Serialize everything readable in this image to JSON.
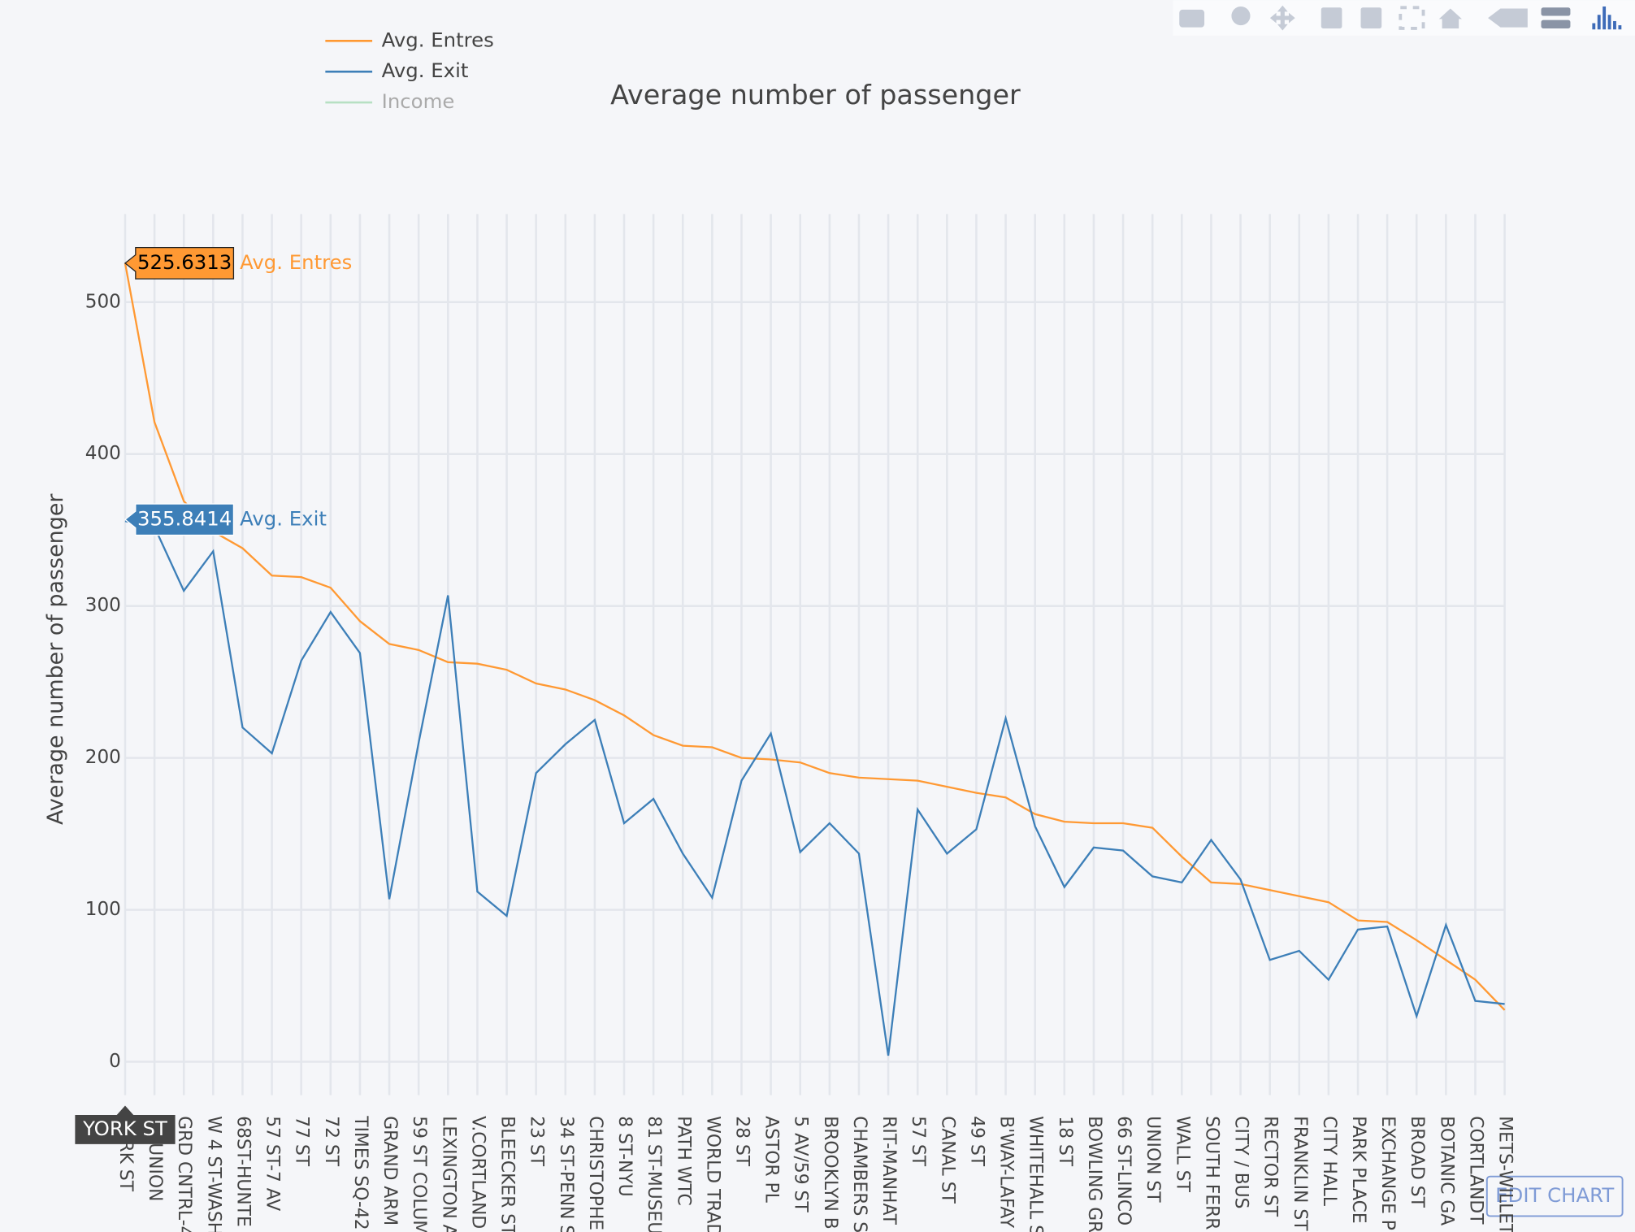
{
  "chart_data": {
    "type": "line",
    "title": "Average number of passenger",
    "y_label": "Average number of passenger",
    "categories": [
      "YORK ST",
      "ST-UNION",
      "GRD CNTRL-4",
      "W 4 ST-WASH",
      "68ST-HUNTE",
      "57 ST-7 AV",
      "77 ST",
      "72 ST",
      "TIMES SQ-42",
      "GRAND ARM",
      "59 ST COLUM",
      "LEXINGTON A",
      "V.CORTLAND",
      "BLEECKER ST",
      "23 ST",
      "34 ST-PENN S",
      "CHRISTOPHE",
      "8 ST-NYU",
      "81 ST-MUSEU",
      "PATH WTC",
      "WORLD TRAD",
      "28 ST",
      "ASTOR PL",
      "5 AV/59 ST",
      "BROOKLYN B",
      "CHAMBERS S",
      "RIT-MANHAT",
      "57 ST",
      "CANAL ST",
      "49 ST",
      "B'WAY-LAFAY",
      "WHITEHALL S",
      "18 ST",
      "BOWLING GR",
      "66 ST-LINCO",
      "UNION ST",
      "WALL ST",
      "SOUTH FERR",
      "CITY / BUS",
      "RECTOR ST",
      "FRANKLIN ST",
      "CITY HALL",
      "PARK PLACE",
      "EXCHANGE P",
      "BROAD ST",
      "BOTANIC GA",
      "CORTLANDT",
      "METS-WILLET"
    ],
    "series": [
      {
        "name": "Avg. Entres",
        "color": "#ff9933",
        "values": [
          525.6313,
          421,
          369,
          349,
          338,
          320,
          319,
          312,
          290,
          275,
          271,
          263,
          262,
          258,
          249,
          245,
          238,
          228,
          215,
          208,
          207,
          200,
          199,
          197,
          190,
          187,
          186,
          185,
          181,
          177,
          174,
          163,
          158,
          157,
          157,
          154,
          135,
          118,
          117,
          113,
          109,
          105,
          93,
          92,
          80,
          67,
          54,
          34
        ]
      },
      {
        "name": "Avg. Exit",
        "color": "#3d7fb8",
        "values": [
          355.8414,
          352,
          310,
          336,
          220,
          203,
          264,
          296,
          269,
          107,
          210,
          307,
          112,
          96,
          190,
          209,
          225,
          157,
          173,
          137,
          108,
          185,
          216,
          138,
          157,
          137,
          4,
          166,
          137,
          153,
          226,
          155,
          115,
          141,
          139,
          122,
          118,
          146,
          120,
          67,
          73,
          54,
          87,
          89,
          30,
          90,
          40,
          38
        ]
      },
      {
        "name": "Income",
        "color": "#8fd3a0",
        "visible": false
      }
    ],
    "ylim": [
      -22,
      558
    ],
    "yticks": [
      0,
      100,
      200,
      300,
      400,
      500
    ],
    "grid": true,
    "legend": "top-left",
    "hover_index": 0,
    "edit_button": "EDIT CHART"
  }
}
